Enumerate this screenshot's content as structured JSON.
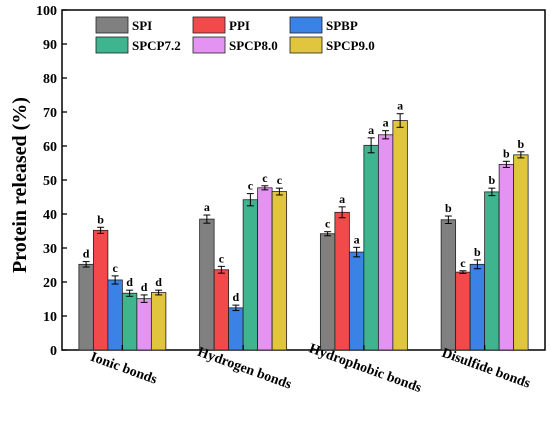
{
  "chart_data": {
    "type": "bar",
    "ylabel": "Protein released (%)",
    "xlabel": "",
    "ylim": [
      0,
      100
    ],
    "yticks": [
      0,
      10,
      20,
      30,
      40,
      50,
      60,
      70,
      80,
      90,
      100
    ],
    "categories": [
      "Ionic bonds",
      "Hydrogen bonds",
      "Hydrophobic bonds",
      "Disulfide bonds"
    ],
    "legend_position": "top-left",
    "legend_columns": 3,
    "series": [
      {
        "name": "SPI",
        "color": "#808080",
        "values": [
          25.2,
          38.5,
          34.2,
          38.3
        ],
        "errors": [
          0.8,
          1.2,
          0.6,
          1.1
        ],
        "letters": [
          "d",
          "a",
          "c",
          "b"
        ]
      },
      {
        "name": "PPI",
        "color": "#f24a4a",
        "values": [
          35.2,
          23.6,
          40.5,
          22.9
        ],
        "errors": [
          0.9,
          1.0,
          1.6,
          0.4
        ],
        "letters": [
          "b",
          "c",
          "a",
          "c"
        ]
      },
      {
        "name": "SPBP",
        "color": "#3b82e6",
        "values": [
          20.6,
          12.4,
          28.8,
          25.2
        ],
        "errors": [
          1.2,
          0.8,
          1.4,
          1.3
        ],
        "letters": [
          "c",
          "d",
          "a",
          "b"
        ]
      },
      {
        "name": "SPCP7.2",
        "color": "#3fb58f",
        "values": [
          16.7,
          44.2,
          60.2,
          46.5
        ],
        "errors": [
          0.9,
          1.8,
          2.2,
          1.1
        ],
        "letters": [
          "d",
          "c",
          "a",
          "b"
        ]
      },
      {
        "name": "SPCP8.0",
        "color": "#e493f2",
        "values": [
          15.1,
          47.7,
          63.3,
          54.6
        ],
        "errors": [
          1.1,
          0.6,
          1.2,
          0.9
        ],
        "letters": [
          "d",
          "c",
          "a",
          "b"
        ]
      },
      {
        "name": "SPCP9.0",
        "color": "#e0c53d",
        "values": [
          16.9,
          46.6,
          67.5,
          57.4
        ],
        "errors": [
          0.7,
          1.0,
          2.0,
          0.9
        ],
        "letters": [
          "d",
          "c",
          "a",
          "b"
        ]
      }
    ]
  }
}
